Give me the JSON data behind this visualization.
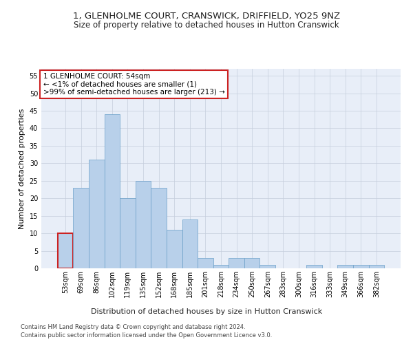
{
  "title": "1, GLENHOLME COURT, CRANSWICK, DRIFFIELD, YO25 9NZ",
  "subtitle": "Size of property relative to detached houses in Hutton Cranswick",
  "xlabel": "Distribution of detached houses by size in Hutton Cranswick",
  "ylabel": "Number of detached properties",
  "bar_values": [
    10,
    23,
    31,
    44,
    20,
    25,
    23,
    11,
    14,
    3,
    1,
    3,
    3,
    1,
    0,
    0,
    1,
    0,
    1,
    1,
    1
  ],
  "bar_labels": [
    "53sqm",
    "69sqm",
    "86sqm",
    "102sqm",
    "119sqm",
    "135sqm",
    "152sqm",
    "168sqm",
    "185sqm",
    "201sqm",
    "218sqm",
    "234sqm",
    "250sqm",
    "267sqm",
    "283sqm",
    "300sqm",
    "316sqm",
    "333sqm",
    "349sqm",
    "366sqm",
    "382sqm"
  ],
  "bar_color": "#b8d0ea",
  "bar_edge_color": "#6a9fc8",
  "highlight_bar_index": 0,
  "highlight_color": "#cc2222",
  "annotation_text": "1 GLENHOLME COURT: 54sqm\n← <1% of detached houses are smaller (1)\n>99% of semi-detached houses are larger (213) →",
  "annotation_box_color": "#ffffff",
  "annotation_box_edge_color": "#cc2222",
  "footnote1": "Contains HM Land Registry data © Crown copyright and database right 2024.",
  "footnote2": "Contains public sector information licensed under the Open Government Licence v3.0.",
  "ylim": [
    0,
    57
  ],
  "yticks": [
    0,
    5,
    10,
    15,
    20,
    25,
    30,
    35,
    40,
    45,
    50,
    55
  ],
  "title_fontsize": 9.5,
  "subtitle_fontsize": 8.5,
  "axis_label_fontsize": 8,
  "tick_fontsize": 7,
  "annotation_fontsize": 7.5,
  "footnote_fontsize": 6,
  "background_color": "#e8eef8"
}
